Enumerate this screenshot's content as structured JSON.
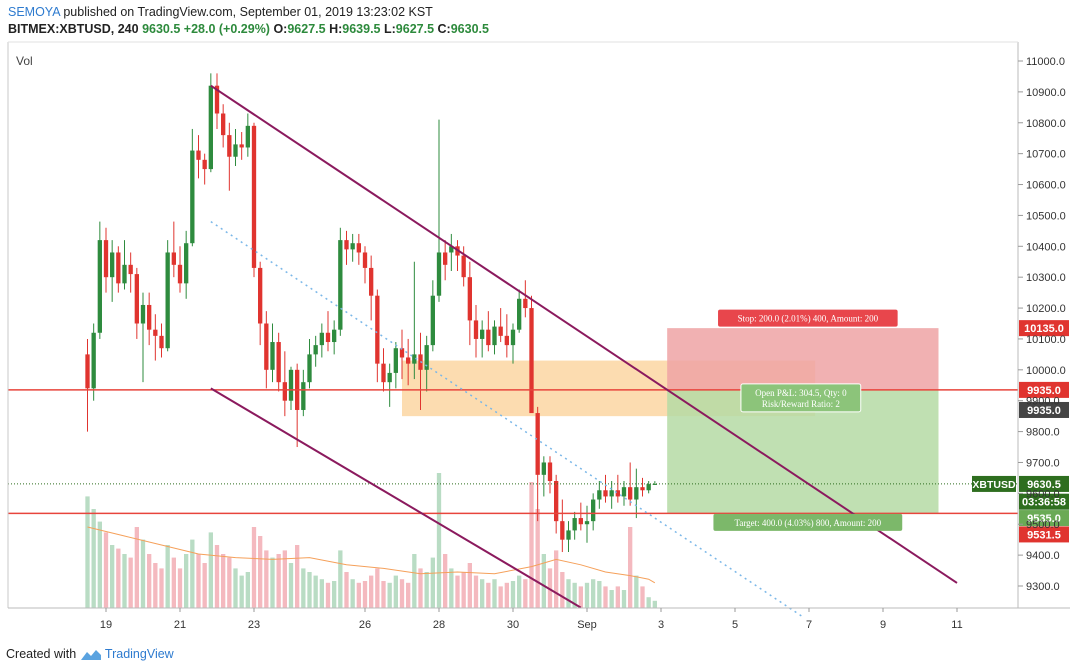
{
  "header": {
    "author": "SEMOYA",
    "published_text": " published on TradingView.com, September 01, 2019 13:23:02 KST",
    "symbol": "BITMEX:XBTUSD, 240",
    "last": "9630.5",
    "change": "+28.0 (+0.29%)",
    "o_label": "O:",
    "o": "9627.5",
    "h_label": "H:",
    "h": "9639.5",
    "l_label": "L:",
    "l": "9627.5",
    "c_label": "C:",
    "c": "9630.5"
  },
  "footer": {
    "created_with": "Created with",
    "brand": "TradingView"
  },
  "colors": {
    "bull": "#2e8b3e",
    "bear": "#e0342f",
    "channel": "#8b1a5e",
    "support_resistance": "#e8453c",
    "zone": "#fcd6a2",
    "stop_zone": "#efa3a5",
    "target_zone": "#b5dba4",
    "volume_bull": "#b9dcc4",
    "volume_bear": "#f4b9bf",
    "volume_ma": "#f5a05a",
    "trend_dotted": "#7ab7e8"
  },
  "chart_data": {
    "type": "candlestick",
    "pane_label": "Vol",
    "ylim": [
      9200,
      11050
    ],
    "y_ticks": [
      "11000.0",
      "10900.0",
      "10800.0",
      "10700.0",
      "10600.0",
      "10500.0",
      "10400.0",
      "10300.0",
      "10200.0",
      "10100.0",
      "10000.0",
      "9900.0",
      "9800.0",
      "9700.0",
      "9600.0",
      "9500.0",
      "9400.0",
      "9300.0"
    ],
    "x_ticks": [
      {
        "label": "19",
        "bar": -11
      },
      {
        "label": "21",
        "bar": 1
      },
      {
        "label": "23",
        "bar": 13
      },
      {
        "label": "26",
        "bar": 31
      },
      {
        "label": "28",
        "bar": 43
      },
      {
        "label": "30",
        "bar": 55
      },
      {
        "label": "Sep",
        "bar": 67
      },
      {
        "label": "3",
        "bar": 79
      },
      {
        "label": "5",
        "bar": 91
      },
      {
        "label": "7",
        "bar": 103
      },
      {
        "label": "9",
        "bar": 115
      },
      {
        "label": "11",
        "bar": 127
      }
    ],
    "bar_range": [
      -15,
      130
    ],
    "candles": [
      [
        -14,
        10050,
        10100,
        9800,
        9940
      ],
      [
        -13,
        9940,
        10150,
        9900,
        10120
      ],
      [
        -12,
        10120,
        10480,
        10100,
        10420
      ],
      [
        -11,
        10420,
        10460,
        10250,
        10300
      ],
      [
        -10,
        10300,
        10420,
        10220,
        10380
      ],
      [
        -9,
        10380,
        10400,
        10250,
        10280
      ],
      [
        -8,
        10280,
        10420,
        10260,
        10340
      ],
      [
        -7,
        10340,
        10380,
        10250,
        10310
      ],
      [
        -6,
        10310,
        10330,
        10100,
        10150
      ],
      [
        -5,
        10150,
        10250,
        9960,
        10210
      ],
      [
        -4,
        10210,
        10250,
        10080,
        10130
      ],
      [
        -3,
        10130,
        10180,
        10030,
        10110
      ],
      [
        -2,
        10110,
        10150,
        10040,
        10070
      ],
      [
        -1,
        10070,
        10420,
        10060,
        10380
      ],
      [
        0,
        10380,
        10480,
        10300,
        10340
      ],
      [
        1,
        10340,
        10400,
        10250,
        10280
      ],
      [
        2,
        10280,
        10450,
        10230,
        10410
      ],
      [
        3,
        10410,
        10780,
        10400,
        10710
      ],
      [
        4,
        10710,
        10760,
        10620,
        10680
      ],
      [
        5,
        10680,
        10700,
        10600,
        10650
      ],
      [
        6,
        10650,
        10960,
        10640,
        10920
      ],
      [
        7,
        10920,
        10960,
        10780,
        10830
      ],
      [
        8,
        10830,
        10860,
        10720,
        10760
      ],
      [
        9,
        10760,
        10800,
        10580,
        10690
      ],
      [
        10,
        10690,
        10780,
        10660,
        10730
      ],
      [
        11,
        10730,
        10770,
        10680,
        10720
      ],
      [
        12,
        10720,
        10830,
        10690,
        10790
      ],
      [
        13,
        10790,
        10800,
        10300,
        10330
      ],
      [
        14,
        10330,
        10350,
        10080,
        10150
      ],
      [
        15,
        10150,
        10190,
        9940,
        10000
      ],
      [
        16,
        10000,
        10150,
        9960,
        10090
      ],
      [
        17,
        10090,
        10120,
        9930,
        9960
      ],
      [
        18,
        9960,
        10060,
        9850,
        9900
      ],
      [
        19,
        9900,
        10010,
        9870,
        10000
      ],
      [
        20,
        10000,
        10020,
        9750,
        9870
      ],
      [
        21,
        9870,
        10000,
        9850,
        9960
      ],
      [
        22,
        9960,
        10100,
        9940,
        10050
      ],
      [
        23,
        10050,
        10110,
        10010,
        10080
      ],
      [
        24,
        10080,
        10150,
        10040,
        10120
      ],
      [
        25,
        10120,
        10190,
        10060,
        10090
      ],
      [
        26,
        10090,
        10160,
        10050,
        10130
      ],
      [
        27,
        10130,
        10460,
        10110,
        10420
      ],
      [
        28,
        10420,
        10450,
        10340,
        10390
      ],
      [
        29,
        10390,
        10440,
        10350,
        10410
      ],
      [
        30,
        10410,
        10440,
        10340,
        10380
      ],
      [
        31,
        10380,
        10400,
        10280,
        10330
      ],
      [
        32,
        10330,
        10370,
        10160,
        10240
      ],
      [
        33,
        10240,
        10260,
        9960,
        10020
      ],
      [
        34,
        10020,
        10070,
        9930,
        9960
      ],
      [
        35,
        9960,
        10020,
        9880,
        9990
      ],
      [
        36,
        9990,
        10090,
        9940,
        10070
      ],
      [
        37,
        10070,
        10130,
        9970,
        10040
      ],
      [
        38,
        10040,
        10100,
        9950,
        10020
      ],
      [
        39,
        10020,
        10350,
        9970,
        10050
      ],
      [
        40,
        10050,
        10120,
        9870,
        10000
      ],
      [
        41,
        10000,
        10110,
        9930,
        10080
      ],
      [
        42,
        10080,
        10290,
        10060,
        10240
      ],
      [
        43,
        10240,
        10810,
        10220,
        10380
      ],
      [
        44,
        10380,
        10420,
        10290,
        10340
      ],
      [
        45,
        10380,
        10440,
        10320,
        10400
      ],
      [
        46,
        10400,
        10420,
        10320,
        10370
      ],
      [
        47,
        10370,
        10400,
        10270,
        10300
      ],
      [
        48,
        10300,
        10350,
        10080,
        10160
      ],
      [
        49,
        10160,
        10210,
        10040,
        10100
      ],
      [
        50,
        10100,
        10160,
        10040,
        10130
      ],
      [
        51,
        10130,
        10190,
        10060,
        10080
      ],
      [
        52,
        10080,
        10160,
        10050,
        10140
      ],
      [
        53,
        10140,
        10200,
        10090,
        10110
      ],
      [
        54,
        10110,
        10180,
        10040,
        10080
      ],
      [
        55,
        10080,
        10150,
        10020,
        10130
      ],
      [
        56,
        10130,
        10260,
        10120,
        10230
      ],
      [
        57,
        10230,
        10290,
        10170,
        10200
      ],
      [
        58,
        10200,
        10240,
        9860,
        9860
      ],
      [
        59,
        9860,
        9880,
        9510,
        9660
      ],
      [
        60,
        9660,
        9720,
        9590,
        9700
      ],
      [
        61,
        9700,
        9720,
        9600,
        9640
      ],
      [
        62,
        9640,
        9660,
        9470,
        9510
      ],
      [
        63,
        9510,
        9580,
        9410,
        9450
      ],
      [
        64,
        9450,
        9510,
        9410,
        9480
      ],
      [
        65,
        9480,
        9540,
        9450,
        9520
      ],
      [
        66,
        9520,
        9570,
        9480,
        9500
      ],
      [
        67,
        9500,
        9560,
        9440,
        9510
      ],
      [
        68,
        9510,
        9600,
        9480,
        9580
      ],
      [
        69,
        9580,
        9640,
        9550,
        9610
      ],
      [
        70,
        9610,
        9660,
        9570,
        9590
      ],
      [
        71,
        9590,
        9640,
        9550,
        9610
      ],
      [
        72,
        9610,
        9660,
        9570,
        9590
      ],
      [
        73,
        9590,
        9640,
        9560,
        9620
      ],
      [
        74,
        9620,
        9700,
        9560,
        9580
      ],
      [
        75,
        9580,
        9680,
        9520,
        9620
      ],
      [
        76,
        9620,
        9650,
        9590,
        9610
      ],
      [
        77,
        9610,
        9640,
        9600,
        9630
      ],
      [
        78,
        9627.5,
        9639.5,
        9627.5,
        9630.5
      ]
    ],
    "volume": [
      [
        -14,
        0.62,
        1
      ],
      [
        -13,
        0.55,
        1
      ],
      [
        -12,
        0.48,
        1
      ],
      [
        -11,
        0.42,
        0
      ],
      [
        -10,
        0.35,
        1
      ],
      [
        -9,
        0.33,
        0
      ],
      [
        -8,
        0.3,
        1
      ],
      [
        -7,
        0.28,
        0
      ],
      [
        -6,
        0.45,
        0
      ],
      [
        -5,
        0.38,
        1
      ],
      [
        -4,
        0.3,
        0
      ],
      [
        -3,
        0.25,
        0
      ],
      [
        -2,
        0.22,
        0
      ],
      [
        -1,
        0.35,
        1
      ],
      [
        0,
        0.28,
        0
      ],
      [
        1,
        0.22,
        0
      ],
      [
        2,
        0.3,
        1
      ],
      [
        3,
        0.38,
        1
      ],
      [
        4,
        0.3,
        0
      ],
      [
        5,
        0.25,
        0
      ],
      [
        6,
        0.42,
        1
      ],
      [
        7,
        0.35,
        0
      ],
      [
        8,
        0.3,
        0
      ],
      [
        9,
        0.28,
        0
      ],
      [
        10,
        0.22,
        1
      ],
      [
        11,
        0.18,
        1
      ],
      [
        12,
        0.2,
        1
      ],
      [
        13,
        0.45,
        0
      ],
      [
        14,
        0.4,
        0
      ],
      [
        15,
        0.32,
        0
      ],
      [
        16,
        0.28,
        1
      ],
      [
        17,
        0.3,
        0
      ],
      [
        18,
        0.32,
        0
      ],
      [
        19,
        0.25,
        1
      ],
      [
        20,
        0.35,
        0
      ],
      [
        21,
        0.22,
        1
      ],
      [
        22,
        0.2,
        1
      ],
      [
        23,
        0.18,
        1
      ],
      [
        24,
        0.16,
        1
      ],
      [
        25,
        0.14,
        0
      ],
      [
        26,
        0.15,
        1
      ],
      [
        27,
        0.32,
        1
      ],
      [
        28,
        0.2,
        0
      ],
      [
        29,
        0.16,
        1
      ],
      [
        30,
        0.14,
        0
      ],
      [
        31,
        0.15,
        0
      ],
      [
        32,
        0.18,
        0
      ],
      [
        33,
        0.22,
        0
      ],
      [
        34,
        0.15,
        0
      ],
      [
        35,
        0.14,
        1
      ],
      [
        36,
        0.18,
        1
      ],
      [
        37,
        0.16,
        0
      ],
      [
        38,
        0.14,
        0
      ],
      [
        39,
        0.3,
        1
      ],
      [
        40,
        0.22,
        0
      ],
      [
        41,
        0.2,
        1
      ],
      [
        42,
        0.28,
        1
      ],
      [
        43,
        0.75,
        1
      ],
      [
        44,
        0.3,
        0
      ],
      [
        45,
        0.22,
        1
      ],
      [
        46,
        0.18,
        0
      ],
      [
        47,
        0.2,
        0
      ],
      [
        48,
        0.25,
        0
      ],
      [
        49,
        0.18,
        0
      ],
      [
        50,
        0.16,
        1
      ],
      [
        51,
        0.14,
        0
      ],
      [
        52,
        0.16,
        1
      ],
      [
        53,
        0.12,
        0
      ],
      [
        54,
        0.14,
        0
      ],
      [
        55,
        0.15,
        1
      ],
      [
        56,
        0.18,
        1
      ],
      [
        57,
        0.16,
        0
      ],
      [
        58,
        0.7,
        0
      ],
      [
        59,
        0.55,
        0
      ],
      [
        60,
        0.3,
        1
      ],
      [
        61,
        0.22,
        0
      ],
      [
        62,
        0.32,
        0
      ],
      [
        63,
        0.2,
        0
      ],
      [
        64,
        0.16,
        1
      ],
      [
        65,
        0.14,
        1
      ],
      [
        66,
        0.12,
        0
      ],
      [
        67,
        0.14,
        1
      ],
      [
        68,
        0.16,
        1
      ],
      [
        69,
        0.15,
        1
      ],
      [
        70,
        0.12,
        0
      ],
      [
        71,
        0.1,
        1
      ],
      [
        72,
        0.12,
        0
      ],
      [
        73,
        0.1,
        1
      ],
      [
        74,
        0.45,
        0
      ],
      [
        75,
        0.18,
        1
      ],
      [
        76,
        0.12,
        0
      ],
      [
        77,
        0.06,
        1
      ],
      [
        78,
        0.04,
        1
      ]
    ],
    "volume_ma": [
      [
        -14,
        0.45
      ],
      [
        -8,
        0.4
      ],
      [
        -2,
        0.35
      ],
      [
        4,
        0.3
      ],
      [
        10,
        0.28
      ],
      [
        16,
        0.27
      ],
      [
        22,
        0.28
      ],
      [
        28,
        0.24
      ],
      [
        34,
        0.22
      ],
      [
        40,
        0.19
      ],
      [
        46,
        0.2
      ],
      [
        52,
        0.19
      ],
      [
        58,
        0.23
      ],
      [
        62,
        0.27
      ],
      [
        66,
        0.24
      ],
      [
        70,
        0.2
      ],
      [
        74,
        0.18
      ],
      [
        77,
        0.16
      ],
      [
        78,
        0.14
      ]
    ],
    "channel_upper": [
      [
        6,
        10920
      ],
      [
        127,
        9310
      ]
    ],
    "channel_lower": [
      [
        6,
        9940
      ],
      [
        66,
        9230
      ]
    ],
    "trend_dotted": [
      [
        6,
        10480
      ],
      [
        102,
        9200
      ]
    ],
    "resistance_9935": 9935,
    "support_9535": 9535,
    "current_price_line": 9630.5,
    "supply_zone": {
      "bar_from": 37,
      "bar_to": 104,
      "low": 9850,
      "high": 10030
    },
    "position": {
      "bar_from": 80,
      "bar_to": 124,
      "entry": 9935,
      "stop": 10135,
      "target": 9535,
      "stop_label": "Stop: 200.0 (2.01%) 400, Amount: 200",
      "target_label": "Target: 400.0 (4.03%) 800, Amount: 200",
      "pnl_label_1": "Open P&L: 304.5, Qty: 0",
      "pnl_label_2": "Risk/Reward Ratio: 2"
    },
    "price_tags": [
      {
        "text": "10135.0",
        "price": 10135,
        "color": "#e0342f"
      },
      {
        "text": "9935.0",
        "price": 9935,
        "color": "#e0342f"
      },
      {
        "text": "9935.0",
        "price": 9870,
        "color": "#444444"
      },
      {
        "text": "9630.5",
        "price": 9630.5,
        "color": "#2e6e1f"
      },
      {
        "text": "03:36:58",
        "price": 9573,
        "color": "#2e6e1f"
      },
      {
        "text": "9535.0",
        "price": 9520,
        "color": "#6aaa55"
      },
      {
        "text": "9531.5",
        "price": 9467,
        "color": "#e0342f"
      }
    ],
    "symbol_tag": "XBTUSD"
  }
}
